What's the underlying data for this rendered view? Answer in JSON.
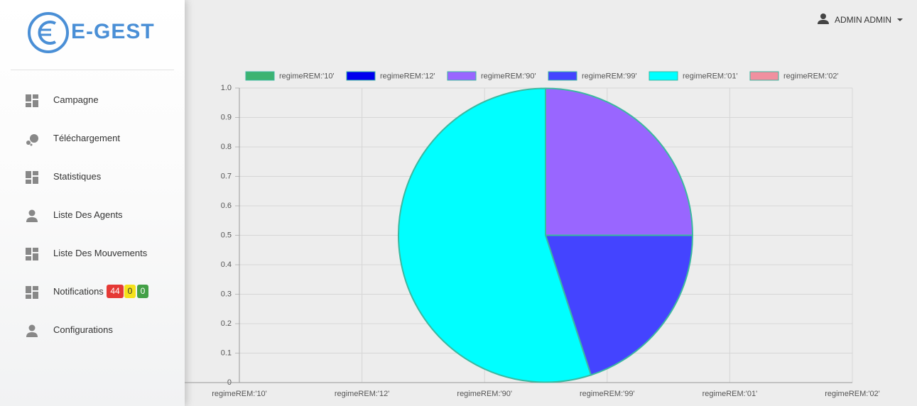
{
  "brand": "E-GEST",
  "user": "ADMIN ADMIN",
  "nav": [
    {
      "label": "Campagne"
    },
    {
      "label": "Téléchargement"
    },
    {
      "label": "Statistiques"
    },
    {
      "label": "Liste Des Agents"
    },
    {
      "label": "Liste Des Mouvements"
    },
    {
      "label": "Notifications",
      "badges": [
        44,
        0,
        0
      ]
    },
    {
      "label": "Configurations"
    }
  ],
  "chart_data": {
    "type": "pie",
    "categories": [
      "regimeREM:'10'",
      "regimeREM:'12'",
      "regimeREM:'90'",
      "regimeREM:'99'",
      "regimeREM:'01'",
      "regimeREM:'02'"
    ],
    "values": [
      0,
      0,
      25,
      20,
      55,
      0
    ],
    "colors": [
      "#3cb371",
      "#0000ee",
      "#9966ff",
      "#4444ff",
      "#00ffff",
      "#f0909f"
    ],
    "border_color": "#3cb8a0",
    "ylim": [
      0,
      1
    ],
    "yticks": [
      0,
      0.1,
      0.2,
      0.3,
      0.4,
      0.5,
      0.6,
      0.7,
      0.8,
      0.9,
      {
        "value": 1,
        "label": "1.0"
      }
    ],
    "grid": true,
    "legend": "top"
  }
}
